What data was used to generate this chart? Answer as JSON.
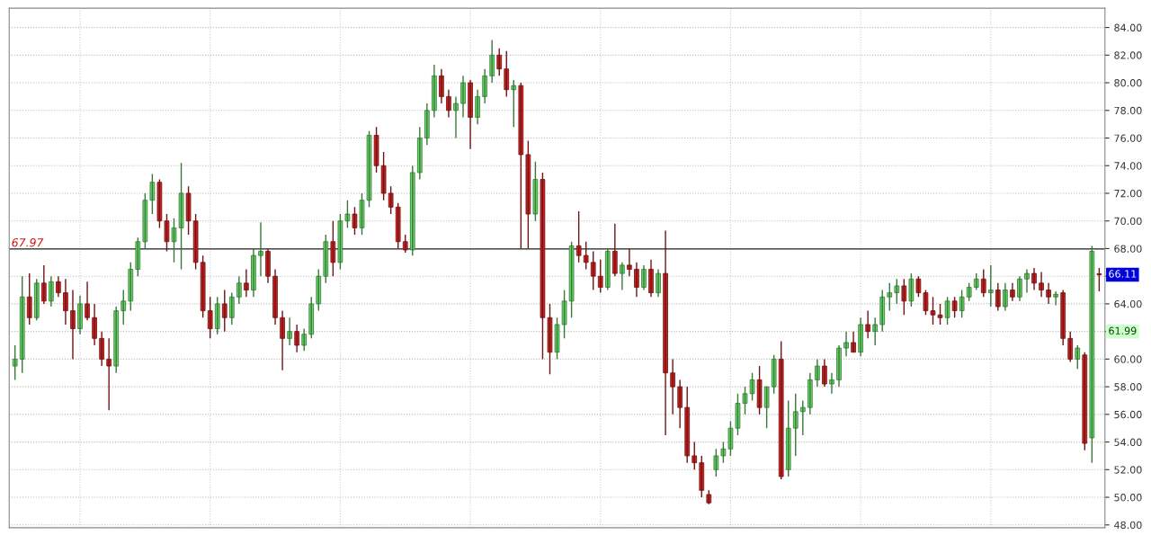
{
  "chart_data": {
    "type": "candlestick",
    "categories": [
      null,
      null,
      null,
      null,
      null,
      null,
      null,
      null,
      null,
      null,
      null,
      null,
      null,
      null,
      null,
      null,
      null,
      null,
      null,
      null,
      null,
      null,
      null,
      null,
      null,
      null,
      null,
      null,
      null,
      null,
      null,
      null,
      null,
      null,
      null,
      null,
      null,
      null,
      null,
      null,
      null,
      null,
      null,
      null,
      null,
      null,
      null,
      null,
      null,
      null,
      null,
      null,
      null,
      null,
      null,
      null,
      null,
      null,
      null,
      null,
      null,
      null,
      null,
      null,
      null,
      null,
      null,
      null,
      null,
      null,
      null,
      null,
      null,
      null,
      null,
      null,
      null,
      null,
      null,
      null,
      null,
      null,
      null,
      null,
      null,
      null,
      null,
      null,
      null,
      null,
      null,
      null,
      null,
      null,
      null,
      null,
      null,
      null,
      null,
      null,
      null,
      null,
      null,
      null,
      null,
      null,
      null,
      null,
      null,
      null,
      null,
      null,
      null,
      null,
      null,
      null,
      null,
      null,
      null,
      null,
      null,
      null,
      null,
      null,
      null,
      null,
      null,
      null,
      null,
      null,
      null,
      null,
      null,
      null,
      null,
      null,
      null,
      null,
      null,
      null,
      null,
      null,
      null,
      null,
      null,
      null,
      null,
      null,
      null,
      null,
      null
    ],
    "ohlc": [
      [
        59.5,
        61,
        58.5,
        60
      ],
      [
        60,
        66,
        59,
        64.5
      ],
      [
        64.5,
        66.2,
        62.5,
        63
      ],
      [
        63,
        65.8,
        62.8,
        65.5
      ],
      [
        65.5,
        66.8,
        64,
        64.2
      ],
      [
        64.2,
        66,
        63.8,
        65.6
      ],
      [
        65.6,
        66,
        64.5,
        64.8
      ],
      [
        64.8,
        65.8,
        62.5,
        63.5
      ],
      [
        63.5,
        65,
        60,
        62.2
      ],
      [
        62.2,
        64.6,
        61.8,
        64
      ],
      [
        64,
        65.6,
        62.8,
        63
      ],
      [
        63,
        64,
        61,
        61.5
      ],
      [
        61.5,
        62,
        59.5,
        60
      ],
      [
        60,
        61.5,
        56.3,
        59.5
      ],
      [
        59.5,
        63.8,
        59,
        63.5
      ],
      [
        63.5,
        65,
        62.5,
        64.2
      ],
      [
        64.2,
        67,
        63.5,
        66.5
      ],
      [
        66.5,
        68.8,
        66,
        68.5
      ],
      [
        68.5,
        72,
        68,
        71.5
      ],
      [
        71.5,
        73.4,
        70.5,
        72.8
      ],
      [
        72.8,
        73,
        69.5,
        70
      ],
      [
        70,
        70.5,
        67.8,
        68.5
      ],
      [
        68.5,
        70.2,
        67,
        69.5
      ],
      [
        69.5,
        74.2,
        66.5,
        72
      ],
      [
        72,
        72.5,
        69,
        70
      ],
      [
        70,
        70.5,
        66.5,
        67
      ],
      [
        67,
        67.5,
        63,
        63.5
      ],
      [
        63.5,
        64.5,
        61.5,
        62.2
      ],
      [
        62.2,
        64.5,
        61.8,
        64
      ],
      [
        64,
        65,
        62,
        63
      ],
      [
        63,
        64.8,
        62.5,
        64.5
      ],
      [
        64.5,
        66,
        64,
        65.5
      ],
      [
        65.5,
        66.5,
        64.5,
        65
      ],
      [
        65,
        68,
        64.5,
        67.5
      ],
      [
        67.5,
        69.9,
        66,
        67.8
      ],
      [
        67.8,
        68,
        65.5,
        66
      ],
      [
        66,
        66.5,
        62.5,
        63
      ],
      [
        63,
        63.5,
        59.2,
        61.5
      ],
      [
        61.5,
        63,
        61,
        62
      ],
      [
        62,
        62.5,
        60.5,
        61
      ],
      [
        61,
        62.2,
        60.6,
        61.8
      ],
      [
        61.8,
        64.5,
        61.5,
        64
      ],
      [
        64,
        66.5,
        63.5,
        66
      ],
      [
        66,
        69,
        65.5,
        68.5
      ],
      [
        68.5,
        70,
        66,
        67
      ],
      [
        67,
        70.5,
        66.5,
        70
      ],
      [
        70,
        71.5,
        69.5,
        70.5
      ],
      [
        70.5,
        71,
        69,
        69.5
      ],
      [
        69.5,
        72,
        69,
        71.5
      ],
      [
        71.5,
        76.5,
        71,
        76.2
      ],
      [
        76.2,
        76.8,
        73.5,
        74
      ],
      [
        74,
        75,
        71.5,
        72
      ],
      [
        72,
        72.5,
        70.5,
        71
      ],
      [
        71,
        71.3,
        68,
        68.5
      ],
      [
        68.5,
        69,
        67.7,
        67.9
      ],
      [
        67.9,
        74,
        67.5,
        73.5
      ],
      [
        73.5,
        76.8,
        73,
        76
      ],
      [
        76,
        78.5,
        75.5,
        78
      ],
      [
        78,
        81.3,
        77.5,
        80.5
      ],
      [
        80.5,
        81,
        78.5,
        79
      ],
      [
        79,
        79.5,
        77.5,
        78
      ],
      [
        78,
        79,
        76,
        78.5
      ],
      [
        78.5,
        80.5,
        77.5,
        80
      ],
      [
        80,
        80.2,
        75.2,
        77.5
      ],
      [
        77.5,
        79.5,
        77,
        79
      ],
      [
        79,
        81,
        78.5,
        80.5
      ],
      [
        80.5,
        83.1,
        80,
        82
      ],
      [
        82,
        82.5,
        80.5,
        81
      ],
      [
        81,
        82.3,
        79,
        79.5
      ],
      [
        79.5,
        80.2,
        76.8,
        79.8
      ],
      [
        79.8,
        80,
        68,
        74.8
      ],
      [
        74.8,
        75.8,
        68,
        70.5
      ],
      [
        70.5,
        74.3,
        70,
        73
      ],
      [
        73,
        73.5,
        60,
        63
      ],
      [
        63,
        64,
        58.9,
        60.5
      ],
      [
        60.5,
        63,
        60,
        62.5
      ],
      [
        62.5,
        65,
        61.5,
        64.2
      ],
      [
        64.2,
        68.5,
        63,
        68.2
      ],
      [
        68.2,
        70.7,
        67,
        67.5
      ],
      [
        67.5,
        68.5,
        66.5,
        67
      ],
      [
        67,
        67.8,
        65,
        66
      ],
      [
        66,
        67.2,
        64.8,
        65.2
      ],
      [
        65.2,
        68,
        65,
        67.8
      ],
      [
        67.8,
        69.8,
        66,
        66.2
      ],
      [
        66.2,
        67,
        65,
        66.8
      ],
      [
        66.8,
        68,
        66,
        66.5
      ],
      [
        66.5,
        67,
        64.5,
        65.2
      ],
      [
        65.2,
        66.8,
        65,
        66.5
      ],
      [
        66.5,
        67.2,
        64.5,
        64.8
      ],
      [
        64.8,
        66.5,
        64.5,
        66.2
      ],
      [
        66.2,
        69.3,
        54.5,
        59
      ],
      [
        59,
        60,
        56,
        58
      ],
      [
        58,
        58.5,
        55,
        56.5
      ],
      [
        56.5,
        58,
        52.5,
        53
      ],
      [
        53,
        54,
        52,
        52.5
      ],
      [
        52.5,
        53,
        50,
        50.5
      ],
      [
        50.2,
        50.5,
        49.5,
        49.6
      ],
      [
        52,
        53.5,
        51.5,
        53
      ],
      [
        53,
        54,
        52.5,
        53.5
      ],
      [
        53.5,
        55.5,
        53,
        55
      ],
      [
        55,
        57.5,
        54.5,
        56.8
      ],
      [
        56.8,
        58,
        56,
        57.5
      ],
      [
        57.5,
        59,
        57,
        58.5
      ],
      [
        58.5,
        59.5,
        56,
        56.5
      ],
      [
        56.5,
        58,
        55,
        58
      ],
      [
        58,
        60.3,
        57.5,
        60
      ],
      [
        60,
        61.3,
        51.3,
        51.5
      ],
      [
        52,
        57,
        51.5,
        55
      ],
      [
        55,
        57.5,
        53,
        56.2
      ],
      [
        56.2,
        57,
        54.5,
        56.5
      ],
      [
        56.5,
        59,
        56,
        58.5
      ],
      [
        58.5,
        60,
        58,
        59.5
      ],
      [
        59.5,
        60,
        58,
        58.2
      ],
      [
        58.2,
        59,
        57.5,
        58.5
      ],
      [
        58.5,
        61,
        58,
        60.8
      ],
      [
        60.8,
        62,
        60.2,
        61.2
      ],
      [
        61.2,
        62,
        60.5,
        60.5
      ],
      [
        60.5,
        63,
        60.2,
        62.5
      ],
      [
        62.5,
        63.5,
        61.5,
        62
      ],
      [
        62,
        63,
        61,
        62.5
      ],
      [
        62.5,
        65,
        62,
        64.5
      ],
      [
        64.5,
        65.5,
        63.5,
        64.8
      ],
      [
        64.8,
        65.8,
        64,
        65.3
      ],
      [
        65.3,
        65.8,
        63.2,
        64.2
      ],
      [
        64.2,
        66.2,
        63.8,
        65.8
      ],
      [
        65.8,
        66,
        64.5,
        64.8
      ],
      [
        64.8,
        65,
        63.2,
        63.5
      ],
      [
        63.5,
        64.5,
        62.5,
        63.2
      ],
      [
        63.2,
        64,
        62.5,
        63
      ],
      [
        63,
        64.5,
        62.5,
        64.2
      ],
      [
        64.2,
        64.5,
        63,
        63.5
      ],
      [
        63.5,
        65,
        63,
        64.5
      ],
      [
        64.5,
        65.5,
        64.2,
        65.2
      ],
      [
        65.2,
        66.2,
        65,
        65.8
      ],
      [
        65.8,
        66.5,
        64.5,
        64.8
      ],
      [
        64.8,
        66.8,
        63.8,
        65
      ],
      [
        65,
        65.5,
        63.5,
        63.8
      ],
      [
        63.8,
        65.5,
        63.5,
        65
      ],
      [
        65,
        65.5,
        64.2,
        64.5
      ],
      [
        64.5,
        66,
        64.2,
        65.8
      ],
      [
        65.8,
        66.5,
        64.8,
        66.2
      ],
      [
        66.2,
        66.6,
        65,
        65.5
      ],
      [
        65.5,
        66.3,
        64.5,
        65
      ],
      [
        65,
        65.5,
        64,
        64.5
      ],
      [
        64.5,
        64.9,
        63.9,
        64.7
      ],
      [
        64.8,
        65,
        61,
        61.5
      ],
      [
        61.5,
        62,
        59.8,
        60
      ],
      [
        60,
        61,
        59.3,
        60.8
      ],
      [
        60.3,
        60.5,
        53.4,
        53.9
      ],
      [
        54.3,
        68.2,
        52.5,
        67.8
      ],
      [
        66.1,
        66.6,
        64.9,
        66.11
      ]
    ],
    "colors": [
      "#66d966",
      "#66d966",
      "#cc2222",
      "#66d966",
      "#cc2222",
      "#66d966",
      "#cc2222",
      "#cc2222",
      "#cc2222",
      "#66d966",
      "#cc2222",
      "#cc2222",
      "#cc2222",
      "#cc2222",
      "#66d966",
      "#66d966",
      "#66d966",
      "#66d966",
      "#66d966",
      "#66d966",
      "#cc2222",
      "#cc2222",
      "#66d966",
      "#66d966",
      "#cc2222",
      "#cc2222",
      "#cc2222",
      "#cc2222",
      "#66d966",
      "#cc2222",
      "#66d966",
      "#66d966",
      "#cc2222",
      "#66d966",
      "#66d966",
      "#cc2222",
      "#cc2222",
      "#cc2222",
      "#66d966",
      "#cc2222",
      "#66d966",
      "#66d966",
      "#66d966",
      "#66d966",
      "#cc2222",
      "#66d966",
      "#66d966",
      "#cc2222",
      "#66d966",
      "#66d966",
      "#cc2222",
      "#cc2222",
      "#cc2222",
      "#cc2222",
      "#cc2222",
      "#66d966",
      "#66d966",
      "#66d966",
      "#66d966",
      "#cc2222",
      "#cc2222",
      "#66d966",
      "#66d966",
      "#cc2222",
      "#66d966",
      "#66d966",
      "#66d966",
      "#cc2222",
      "#cc2222",
      "#66d966",
      "#cc2222",
      "#cc2222",
      "#66d966",
      "#cc2222",
      "#cc2222",
      "#66d966",
      "#66d966",
      "#66d966",
      "#cc2222",
      "#cc2222",
      "#cc2222",
      "#cc2222",
      "#66d966",
      "#cc2222",
      "#66d966",
      "#cc2222",
      "#cc2222",
      "#66d966",
      "#cc2222",
      "#66d966",
      "#cc2222",
      "#cc2222",
      "#cc2222",
      "#cc2222",
      "#cc2222",
      "#cc2222",
      "#cc2222",
      "#66d966",
      "#66d966",
      "#66d966",
      "#66d966",
      "#66d966",
      "#66d966",
      "#cc2222",
      "#66d966",
      "#66d966",
      "#cc2222",
      "#66d966",
      "#66d966",
      "#66d966",
      "#66d966",
      "#66d966",
      "#cc2222",
      "#66d966",
      "#66d966",
      "#66d966",
      "#cc2222",
      "#66d966",
      "#cc2222",
      "#66d966",
      "#66d966",
      "#66d966",
      "#66d966",
      "#cc2222",
      "#66d966",
      "#cc2222",
      "#cc2222",
      "#cc2222",
      "#cc2222",
      "#66d966",
      "#cc2222",
      "#66d966",
      "#66d966",
      "#66d966",
      "#cc2222",
      "#66d966",
      "#cc2222",
      "#66d966",
      "#cc2222",
      "#66d966",
      "#66d966",
      "#cc2222",
      "#cc2222",
      "#cc2222",
      "#66d966",
      "#cc2222",
      "#cc2222",
      "#66d966",
      "#cc2222",
      "#66d966",
      "#cc2222"
    ],
    "ylim": [
      47.8,
      85.4
    ],
    "yticks": [
      {
        "value": 48,
        "label": "48.00"
      },
      {
        "value": 50,
        "label": "50.00"
      },
      {
        "value": 52,
        "label": "52.00"
      },
      {
        "value": 54,
        "label": "54.00"
      },
      {
        "value": 56,
        "label": "56.00"
      },
      {
        "value": 58,
        "label": "58.00"
      },
      {
        "value": 60,
        "label": "60.00"
      },
      {
        "value": 62,
        "label": null
      },
      {
        "value": 64,
        "label": "64.00"
      },
      {
        "value": 66,
        "label": null
      },
      {
        "value": 68,
        "label": "68.00"
      },
      {
        "value": 70,
        "label": "70.00"
      },
      {
        "value": 72,
        "label": "72.00"
      },
      {
        "value": 74,
        "label": "74.00"
      },
      {
        "value": 76,
        "label": "76.00"
      },
      {
        "value": 78,
        "label": "78.00"
      },
      {
        "value": 80,
        "label": "80.00"
      },
      {
        "value": 82,
        "label": "82.00"
      },
      {
        "value": 84,
        "label": "84.00"
      }
    ],
    "ref_lines": [
      {
        "axis": "y",
        "value": 67.97,
        "label": "67.97",
        "color": "#222222"
      }
    ],
    "annotations": [
      {
        "text": "66.11",
        "y": 66.11
      },
      {
        "text": "61.99",
        "y": 61.99
      }
    ],
    "tick_labels": "y",
    "grid": true,
    "legend": false
  }
}
